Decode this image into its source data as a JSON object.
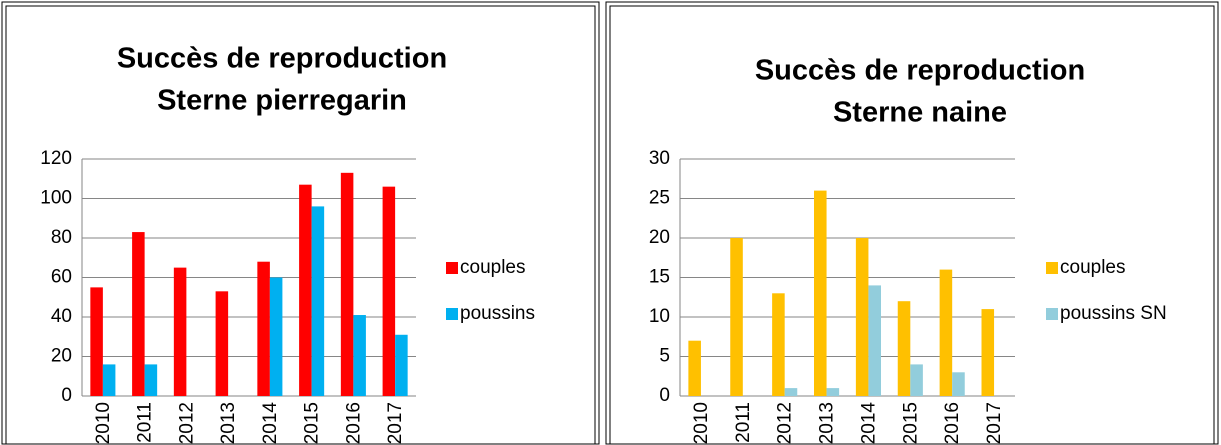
{
  "chart_data": [
    {
      "type": "bar",
      "title": [
        "Succès de reproduction",
        "Sterne  pierregarin"
      ],
      "categories": [
        "2010",
        "2011",
        "2012",
        "2013",
        "2014",
        "2015",
        "2016",
        "2017"
      ],
      "series": [
        {
          "name": "couples",
          "color": "#ff0000",
          "values": [
            55,
            83,
            65,
            53,
            68,
            107,
            113,
            106
          ]
        },
        {
          "name": "poussins",
          "color": "#00b0f0",
          "values": [
            16,
            16,
            null,
            null,
            60,
            96,
            41,
            31
          ]
        }
      ],
      "ylim": [
        0,
        120
      ],
      "yticks": [
        0,
        20,
        40,
        60,
        80,
        100,
        120
      ],
      "grid": true,
      "legend": "right"
    },
    {
      "type": "bar",
      "title": [
        "Succès de reproduction",
        "Sterne naine"
      ],
      "categories": [
        "2010",
        "2011",
        "2012",
        "2013",
        "2014",
        "2015",
        "2016",
        "2017"
      ],
      "series": [
        {
          "name": "couples",
          "color": "#ffc000",
          "values": [
            7,
            20,
            13,
            26,
            20,
            12,
            16,
            11
          ]
        },
        {
          "name": "poussins SN",
          "color": "#92cddc",
          "values": [
            null,
            null,
            1,
            1,
            14,
            4,
            3,
            null
          ]
        }
      ],
      "ylim": [
        0,
        30
      ],
      "yticks": [
        0,
        5,
        10,
        15,
        20,
        25,
        30
      ],
      "grid": true,
      "legend": "right"
    }
  ]
}
